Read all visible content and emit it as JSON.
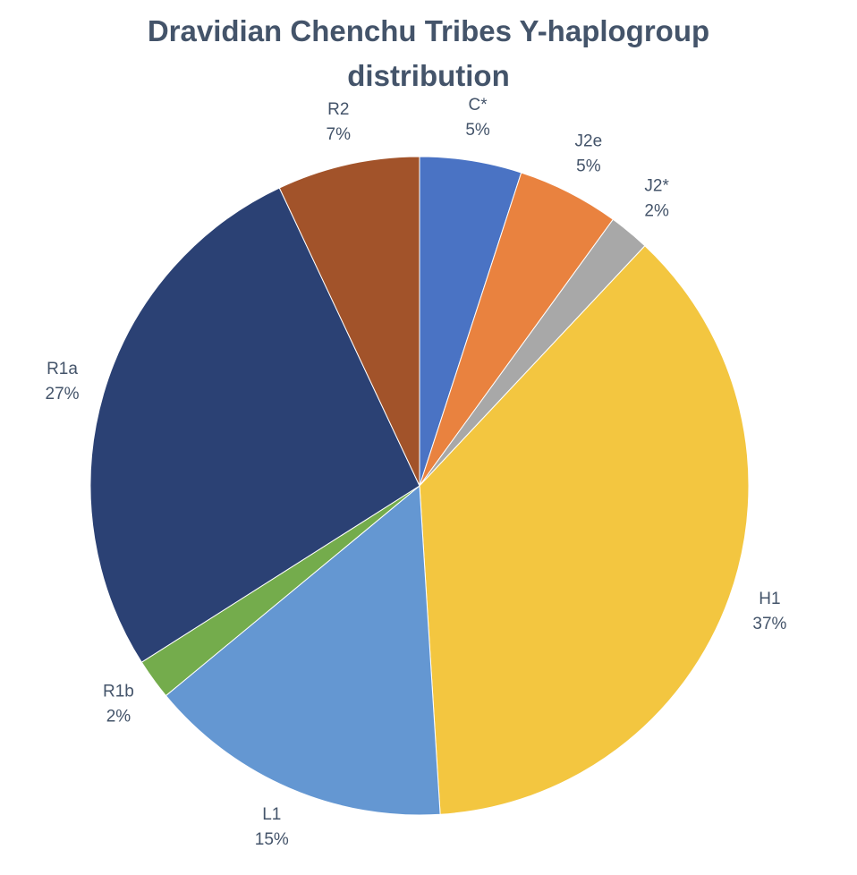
{
  "chart_data": {
    "type": "pie",
    "title": "Dravidian Chenchu Tribes Y-haplogroup distribution",
    "categories": [
      "C*",
      "J2e",
      "J2*",
      "H1",
      "L1",
      "R1b",
      "R1a",
      "R2"
    ],
    "values": [
      5,
      5,
      2,
      37,
      15,
      2,
      27,
      7
    ],
    "value_labels": [
      "5%",
      "5%",
      "2%",
      "37%",
      "15%",
      "2%",
      "27%",
      "7%"
    ],
    "colors": [
      "#4a73c4",
      "#e9823f",
      "#a8a8a8",
      "#f3c640",
      "#6497d2",
      "#74ac4c",
      "#2b4174",
      "#a2532a"
    ]
  }
}
